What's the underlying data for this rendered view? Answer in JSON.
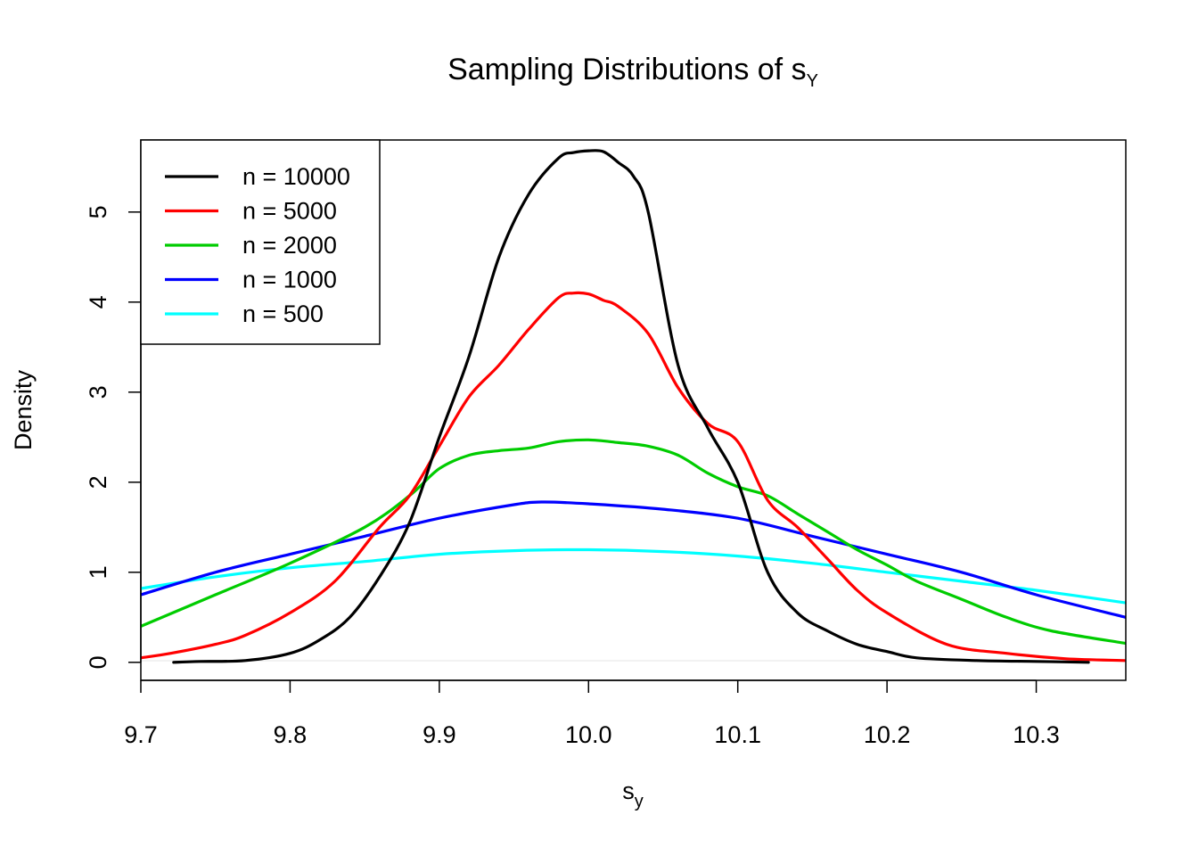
{
  "chart_data": {
    "type": "line",
    "title": "Sampling Distributions of s",
    "title_subscript": "Y",
    "xlabel": "s",
    "xlabel_subscript": "y",
    "ylabel": "Density",
    "xlim": [
      9.7,
      10.36
    ],
    "ylim": [
      -0.2,
      5.8
    ],
    "x_ticks": [
      9.7,
      9.8,
      9.9,
      10.0,
      10.1,
      10.2,
      10.3
    ],
    "x_tick_labels": [
      "9.7",
      "9.8",
      "9.9",
      "10.0",
      "10.1",
      "10.2",
      "10.3"
    ],
    "y_ticks": [
      0,
      1,
      2,
      3,
      4,
      5
    ],
    "y_tick_labels": [
      "0",
      "1",
      "2",
      "3",
      "4",
      "5"
    ],
    "grid": false,
    "legend_position": "top-left",
    "series": [
      {
        "name": "n = 10000",
        "color": "#000000",
        "x": [
          9.722,
          9.74,
          9.77,
          9.8,
          9.82,
          9.84,
          9.86,
          9.88,
          9.9,
          9.92,
          9.94,
          9.96,
          9.98,
          9.99,
          10.0,
          10.01,
          10.02,
          10.03,
          10.04,
          10.06,
          10.08,
          10.1,
          10.12,
          10.14,
          10.16,
          10.18,
          10.2,
          10.22,
          10.26,
          10.3,
          10.335
        ],
        "values": [
          0.0,
          0.01,
          0.02,
          0.1,
          0.25,
          0.5,
          0.95,
          1.55,
          2.5,
          3.4,
          4.5,
          5.2,
          5.6,
          5.66,
          5.68,
          5.67,
          5.55,
          5.4,
          5.0,
          3.3,
          2.6,
          2.0,
          1.0,
          0.55,
          0.35,
          0.2,
          0.12,
          0.05,
          0.02,
          0.01,
          0.0
        ]
      },
      {
        "name": "n = 5000",
        "color": "#ff0000",
        "x": [
          9.7,
          9.72,
          9.75,
          9.77,
          9.8,
          9.83,
          9.86,
          9.88,
          9.9,
          9.92,
          9.94,
          9.96,
          9.98,
          9.99,
          10.0,
          10.01,
          10.02,
          10.04,
          10.06,
          10.08,
          10.1,
          10.12,
          10.14,
          10.16,
          10.18,
          10.2,
          10.24,
          10.28,
          10.32,
          10.36
        ],
        "values": [
          0.05,
          0.1,
          0.2,
          0.3,
          0.55,
          0.9,
          1.5,
          1.85,
          2.4,
          2.95,
          3.3,
          3.7,
          4.05,
          4.1,
          4.09,
          4.02,
          3.95,
          3.65,
          3.05,
          2.65,
          2.45,
          1.8,
          1.5,
          1.15,
          0.8,
          0.55,
          0.2,
          0.1,
          0.04,
          0.02
        ]
      },
      {
        "name": "n = 2000",
        "color": "#00cc00",
        "x": [
          9.7,
          9.75,
          9.8,
          9.85,
          9.88,
          9.9,
          9.92,
          9.94,
          9.96,
          9.98,
          10.0,
          10.02,
          10.04,
          10.06,
          10.08,
          10.1,
          10.12,
          10.14,
          10.16,
          10.18,
          10.2,
          10.22,
          10.25,
          10.28,
          10.31,
          10.36
        ],
        "values": [
          0.4,
          0.75,
          1.1,
          1.5,
          1.85,
          2.15,
          2.3,
          2.35,
          2.38,
          2.45,
          2.47,
          2.44,
          2.4,
          2.3,
          2.1,
          1.95,
          1.85,
          1.65,
          1.45,
          1.25,
          1.08,
          0.9,
          0.7,
          0.5,
          0.35,
          0.21
        ]
      },
      {
        "name": "n = 1000",
        "color": "#0000ff",
        "x": [
          9.7,
          9.75,
          9.8,
          9.85,
          9.9,
          9.95,
          9.97,
          10.0,
          10.05,
          10.1,
          10.15,
          10.2,
          10.25,
          10.3,
          10.36
        ],
        "values": [
          0.75,
          1.0,
          1.2,
          1.4,
          1.6,
          1.75,
          1.78,
          1.76,
          1.7,
          1.6,
          1.4,
          1.2,
          1.0,
          0.75,
          0.5
        ]
      },
      {
        "name": "n = 500",
        "color": "#00ffff",
        "x": [
          9.7,
          9.75,
          9.8,
          9.85,
          9.9,
          9.95,
          10.0,
          10.05,
          10.1,
          10.15,
          10.2,
          10.25,
          10.3,
          10.36
        ],
        "values": [
          0.82,
          0.95,
          1.05,
          1.12,
          1.2,
          1.24,
          1.25,
          1.23,
          1.18,
          1.1,
          1.0,
          0.9,
          0.8,
          0.66
        ]
      }
    ]
  }
}
